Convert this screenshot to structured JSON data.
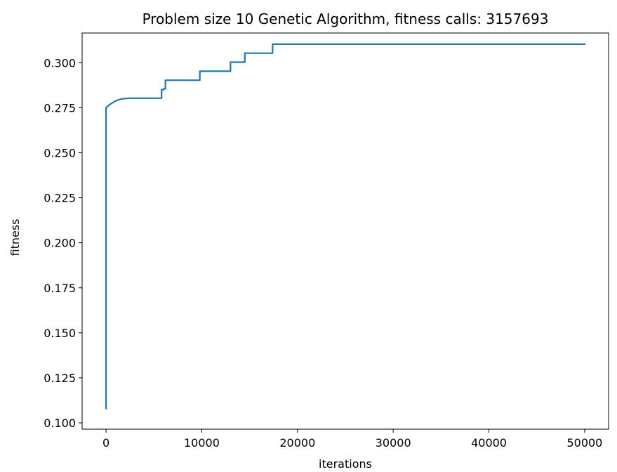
{
  "chart_data": {
    "type": "line",
    "title": "Problem size 10 Genetic Algorithm, fitness calls: 3157693",
    "xlabel": "iterations",
    "ylabel": "fitness",
    "xlim": [
      -2500,
      52500
    ],
    "ylim": [
      0.0965,
      0.3165
    ],
    "xticks": [
      {
        "value": 0,
        "label": "0"
      },
      {
        "value": 10000,
        "label": "10000"
      },
      {
        "value": 20000,
        "label": "20000"
      },
      {
        "value": 30000,
        "label": "30000"
      },
      {
        "value": 40000,
        "label": "40000"
      },
      {
        "value": 50000,
        "label": "50000"
      }
    ],
    "yticks": [
      {
        "value": 0.1,
        "label": "0.100"
      },
      {
        "value": 0.125,
        "label": "0.125"
      },
      {
        "value": 0.15,
        "label": "0.150"
      },
      {
        "value": 0.175,
        "label": "0.175"
      },
      {
        "value": 0.2,
        "label": "0.200"
      },
      {
        "value": 0.225,
        "label": "0.225"
      },
      {
        "value": 0.25,
        "label": "0.250"
      },
      {
        "value": 0.275,
        "label": "0.275"
      },
      {
        "value": 0.3,
        "label": "0.300"
      }
    ],
    "grid": false,
    "legend": "none",
    "series": [
      {
        "color": "#1f77b4",
        "x": [
          0,
          0,
          0,
          0,
          300,
          600,
          900,
          1200,
          1500,
          1800,
          2200,
          2600,
          3000,
          4000,
          5000,
          5800,
          5800,
          6000,
          6000,
          6200,
          6200,
          9800,
          9800,
          13000,
          13000,
          14500,
          14500,
          17400,
          17400,
          50000
        ],
        "y": [
          0.108,
          0.215,
          0.265,
          0.275,
          0.2765,
          0.2775,
          0.2785,
          0.2792,
          0.2797,
          0.28,
          0.2802,
          0.2803,
          0.2803,
          0.2803,
          0.2803,
          0.2803,
          0.285,
          0.285,
          0.2855,
          0.2855,
          0.2903,
          0.2903,
          0.2953,
          0.2953,
          0.3003,
          0.3003,
          0.3053,
          0.3053,
          0.3103,
          0.3103
        ]
      }
    ]
  }
}
